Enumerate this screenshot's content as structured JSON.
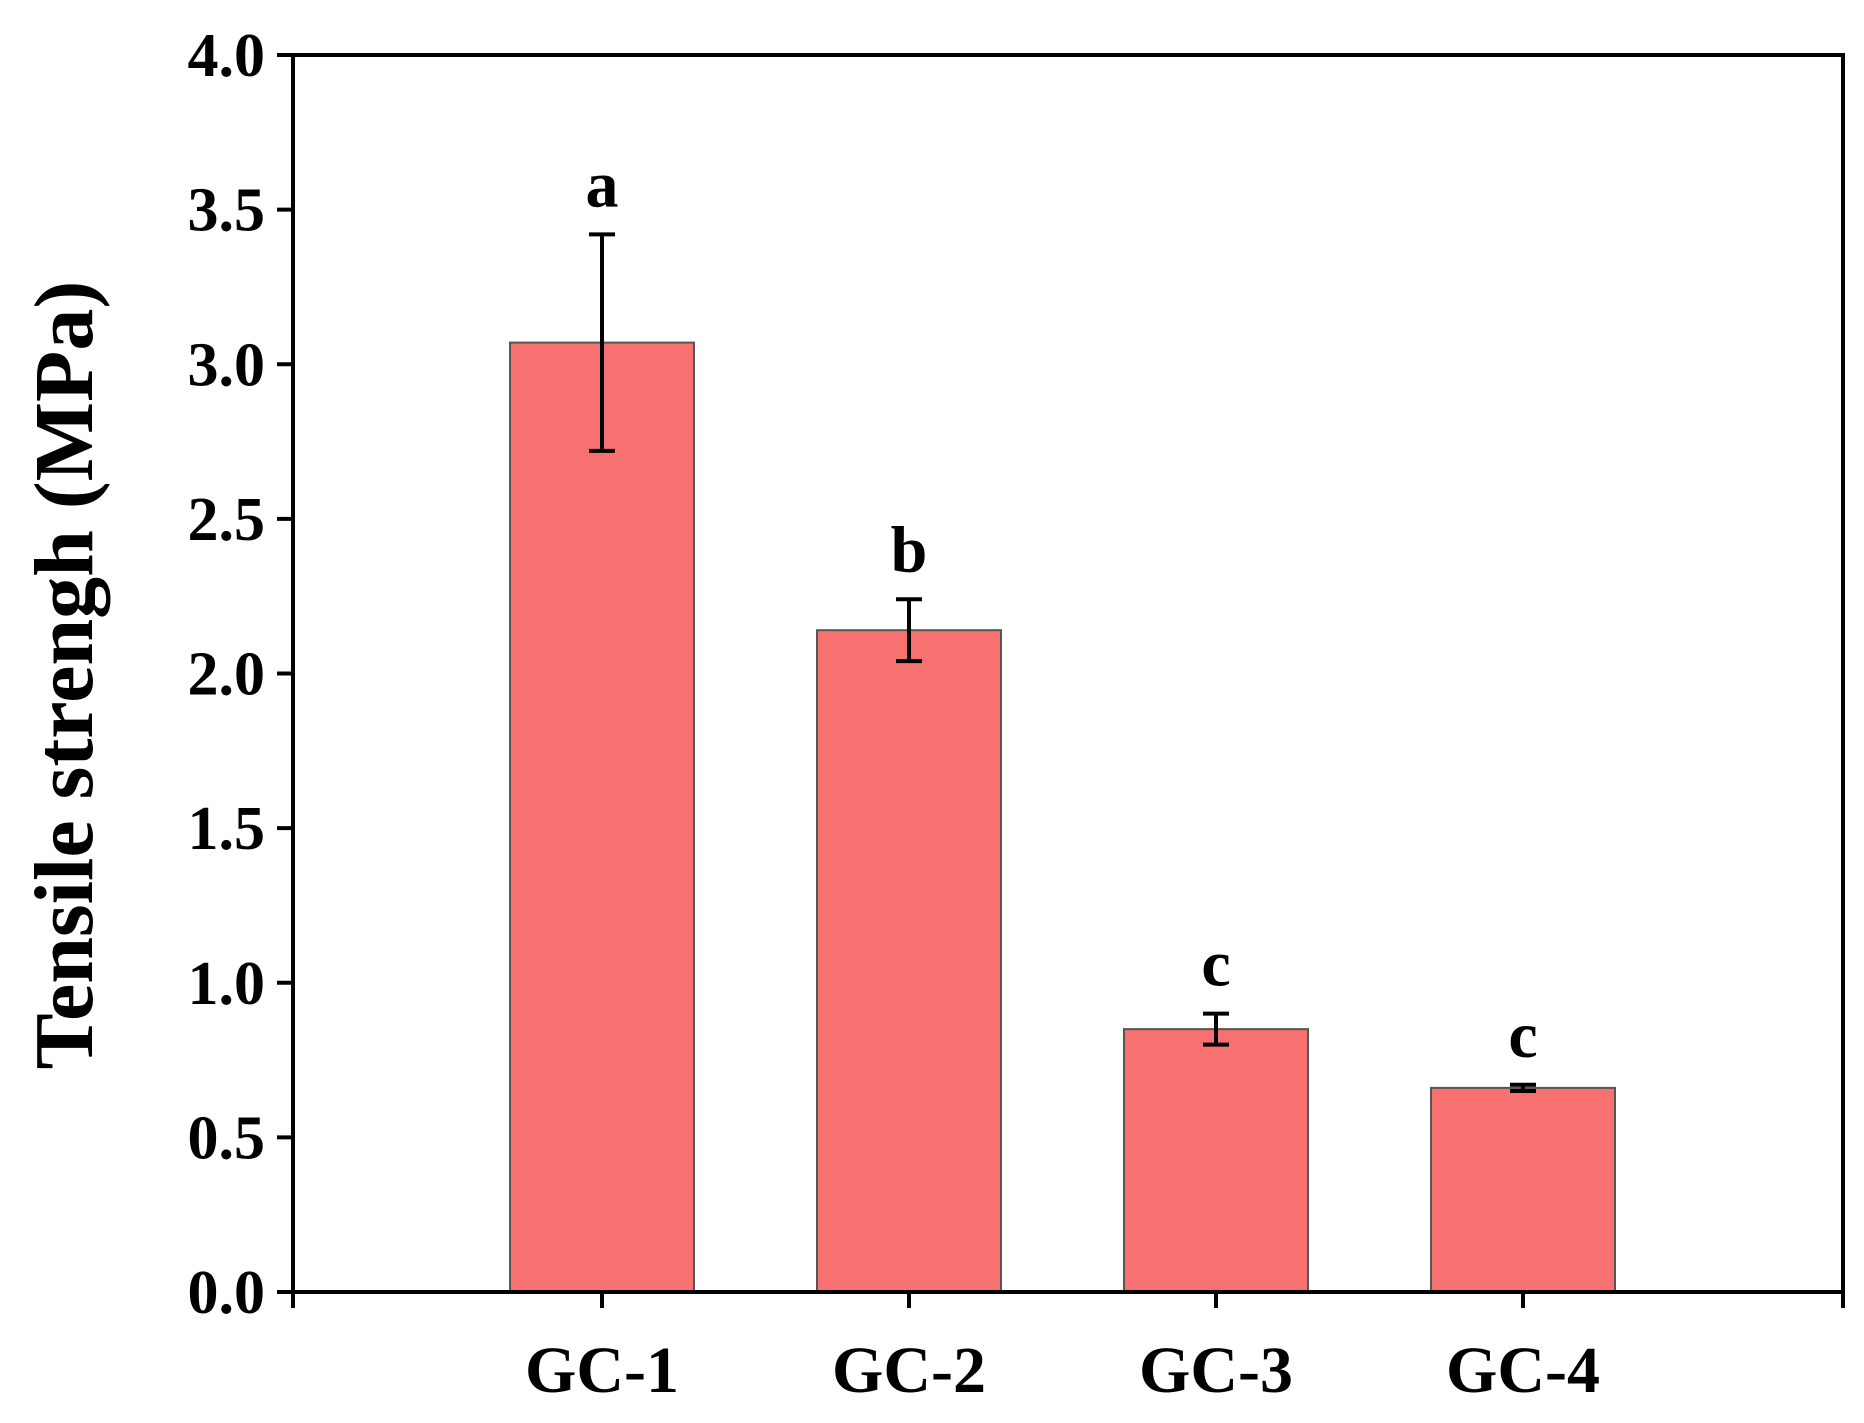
{
  "chart_data": {
    "type": "bar",
    "title": "",
    "xlabel": "",
    "ylabel": "Tensile strengh (MPa)",
    "categories": [
      "GC-1",
      "GC-2",
      "GC-3",
      "GC-4"
    ],
    "values": [
      3.07,
      2.14,
      0.85,
      0.66
    ],
    "error": [
      0.35,
      0.1,
      0.05,
      0.01
    ],
    "significance": [
      "a",
      "b",
      "c",
      "c"
    ],
    "ylim": [
      0,
      4.0
    ],
    "yticks": [
      "0.0",
      "0.5",
      "1.0",
      "1.5",
      "2.0",
      "2.5",
      "3.0",
      "3.5",
      "4.0"
    ],
    "grid": false,
    "legend": "none",
    "bar_color": "#f87171",
    "bar_edge_color": "#555555",
    "axis_color": "#000000"
  }
}
